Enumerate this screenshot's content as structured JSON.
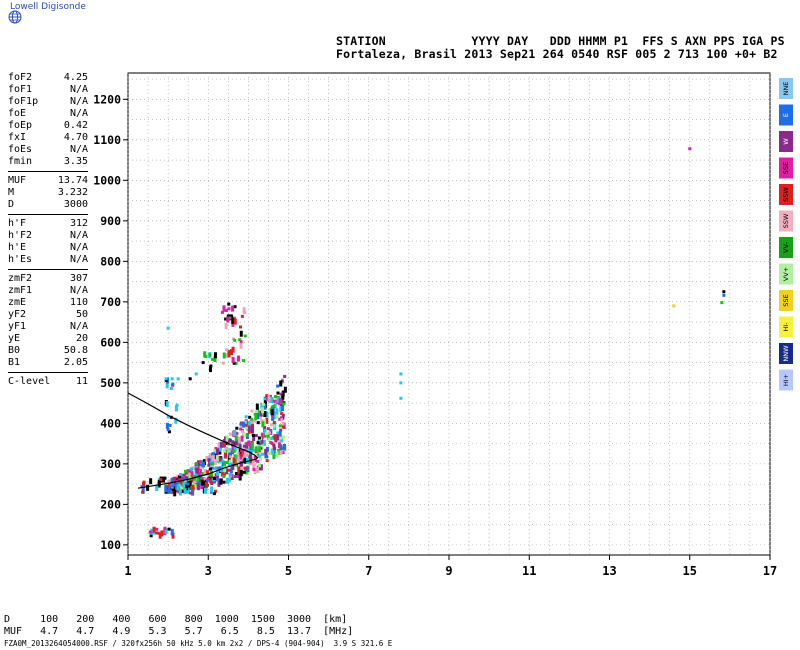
{
  "brand": "Lowell Digisonde",
  "header": {
    "line1": "STATION            YYYY DAY   DDD HHMM P1  FFS S AXN PPS IGA PS",
    "line2": "Fortaleza, Brasil 2013 Sep21 264 0540 RSF 005 2 713 100 +0+ B2"
  },
  "params_group1": [
    {
      "name": "foF2",
      "value": "4.25"
    },
    {
      "name": "foF1",
      "value": "N/A"
    },
    {
      "name": "foF1p",
      "value": "N/A"
    },
    {
      "name": "foE",
      "value": "N/A"
    },
    {
      "name": "foEp",
      "value": "0.42"
    },
    {
      "name": "fxI",
      "value": "4.70"
    },
    {
      "name": "foEs",
      "value": "N/A"
    },
    {
      "name": "fmin",
      "value": "3.35"
    }
  ],
  "params_group2": [
    {
      "name": "MUF",
      "value": "13.74"
    },
    {
      "name": "M",
      "value": "3.232"
    },
    {
      "name": "D",
      "value": "3000"
    }
  ],
  "params_group3": [
    {
      "name": "h'F",
      "value": "312"
    },
    {
      "name": "h'F2",
      "value": "N/A"
    },
    {
      "name": "h'E",
      "value": "N/A"
    },
    {
      "name": "h'Es",
      "value": "N/A"
    }
  ],
  "params_group4": [
    {
      "name": "zmF2",
      "value": "307"
    },
    {
      "name": "zmF1",
      "value": "N/A"
    },
    {
      "name": "zmE",
      "value": "110"
    },
    {
      "name": "yF2",
      "value": "50"
    },
    {
      "name": "yF1",
      "value": "N/A"
    },
    {
      "name": "yE",
      "value": "20"
    },
    {
      "name": "B0",
      "value": "50.8"
    },
    {
      "name": "B1",
      "value": "2.05"
    }
  ],
  "params_group5": [
    {
      "name": "C-level",
      "value": "11"
    }
  ],
  "legend_boxes": [
    {
      "label": "NNE",
      "color": "#88c8f0"
    },
    {
      "label": "E",
      "color": "#1e6ee8"
    },
    {
      "label": "W",
      "color": "#8a2a8a"
    },
    {
      "label": "SSE",
      "color": "#e020a0"
    },
    {
      "label": "SSW",
      "color": "#e02020"
    },
    {
      "label": "SSW",
      "color": "#f0b0c0"
    },
    {
      "label": "VV-",
      "color": "#18a018"
    },
    {
      "label": "VV+",
      "color": "#b0f0a0"
    },
    {
      "label": "SSE",
      "color": "#f0d020"
    },
    {
      "label": "HI-",
      "color": "#f8f040"
    },
    {
      "label": "NNW",
      "color": "#1a2a88"
    },
    {
      "label": "HI+",
      "color": "#b8c8ff"
    }
  ],
  "bottom": {
    "line1": "D     100   200   400   600   800  1000  1500  3000  [km]",
    "line2": "MUF   4.7   4.7   4.9   5.3   5.7   6.5   8.5  13.7  [MHz]",
    "line3": "FZA0M_2013264054000.RSF / 320fx256h 50 kHz 5.0 km 2x2 / DPS-4 (904-904)  3.9 S 321.6 E"
  },
  "chart_data": {
    "type": "scatter",
    "x_ticks": [
      "1",
      "3",
      "5",
      "7",
      "9",
      "11",
      "13",
      "15",
      "17"
    ],
    "y_ticks": [
      "100",
      "200",
      "300",
      "400",
      "500",
      "600",
      "700",
      "800",
      "900",
      "1000",
      "1100",
      "1200"
    ],
    "xlim": [
      1,
      17
    ],
    "ylim": [
      75,
      1265
    ],
    "grid": true,
    "colors": {
      "cyan": "#1ec8f0",
      "blue": "#1e6ee8",
      "purple": "#8a2a8a",
      "magenta": "#e020a0",
      "red": "#e02020",
      "pink": "#f0a0c0",
      "green": "#18c018",
      "lightgreen": "#a0f090",
      "black": "#000000",
      "yellow": "#f0d020"
    },
    "profile_curve": [
      [
        1.25,
        240
      ],
      [
        2.0,
        252
      ],
      [
        2.5,
        262
      ],
      [
        3.0,
        275
      ],
      [
        3.4,
        290
      ],
      [
        3.8,
        302
      ],
      [
        4.05,
        308
      ],
      [
        4.2,
        312
      ],
      [
        4.23,
        315
      ],
      [
        4.15,
        322
      ],
      [
        4.0,
        330
      ],
      [
        3.8,
        338
      ],
      [
        3.5,
        350
      ],
      [
        3.0,
        372
      ],
      [
        2.5,
        395
      ],
      [
        2.0,
        420
      ],
      [
        1.5,
        448
      ],
      [
        1.0,
        475
      ]
    ],
    "clusters": [
      {
        "label": "main trace",
        "x": [
          1.9,
          4.9
        ],
        "y": [
          230,
          520
        ],
        "count": 650,
        "colors": [
          "cyan",
          "blue",
          "red",
          "magenta",
          "green",
          "lightgreen",
          "black",
          "pink",
          "purple"
        ]
      },
      {
        "label": "lower layer",
        "x": [
          1.3,
          3.2
        ],
        "y": [
          230,
          270
        ],
        "count": 60,
        "colors": [
          "cyan",
          "blue",
          "black",
          "red"
        ]
      },
      {
        "label": "120km echoes",
        "x": [
          1.5,
          2.1
        ],
        "y": [
          125,
          145
        ],
        "count": 18,
        "colors": [
          "cyan",
          "magenta",
          "red",
          "black",
          "blue"
        ]
      },
      {
        "label": "upper spread",
        "x": [
          3.3,
          3.9
        ],
        "y": [
          550,
          700
        ],
        "count": 45,
        "colors": [
          "magenta",
          "red",
          "black",
          "pink",
          "green"
        ]
      },
      {
        "label": "mid spread",
        "x": [
          2.8,
          3.2
        ],
        "y": [
          540,
          580
        ],
        "count": 10,
        "colors": [
          "black",
          "cyan",
          "green"
        ]
      },
      {
        "label": "2MHz spots",
        "x": [
          1.9,
          2.2
        ],
        "y": [
          360,
          520
        ],
        "count": 16,
        "colors": [
          "cyan",
          "blue",
          "black",
          "red"
        ]
      }
    ],
    "isolated_points": [
      {
        "x": 2.0,
        "y": 635,
        "c": "cyan"
      },
      {
        "x": 1.95,
        "y": 510,
        "c": "cyan"
      },
      {
        "x": 2.1,
        "y": 510,
        "c": "cyan"
      },
      {
        "x": 2.25,
        "y": 510,
        "c": "cyan"
      },
      {
        "x": 2.05,
        "y": 395,
        "c": "blue"
      },
      {
        "x": 2.55,
        "y": 510,
        "c": "black"
      },
      {
        "x": 2.7,
        "y": 522,
        "c": "cyan"
      },
      {
        "x": 7.8,
        "y": 522,
        "c": "cyan"
      },
      {
        "x": 7.8,
        "y": 462,
        "c": "cyan"
      },
      {
        "x": 7.8,
        "y": 500,
        "c": "cyan"
      },
      {
        "x": 14.6,
        "y": 690,
        "c": "yellow"
      },
      {
        "x": 15.0,
        "y": 1078,
        "c": "magenta"
      },
      {
        "x": 15.85,
        "y": 725,
        "c": "black"
      },
      {
        "x": 15.85,
        "y": 716,
        "c": "blue"
      },
      {
        "x": 15.8,
        "y": 698,
        "c": "green"
      }
    ]
  }
}
